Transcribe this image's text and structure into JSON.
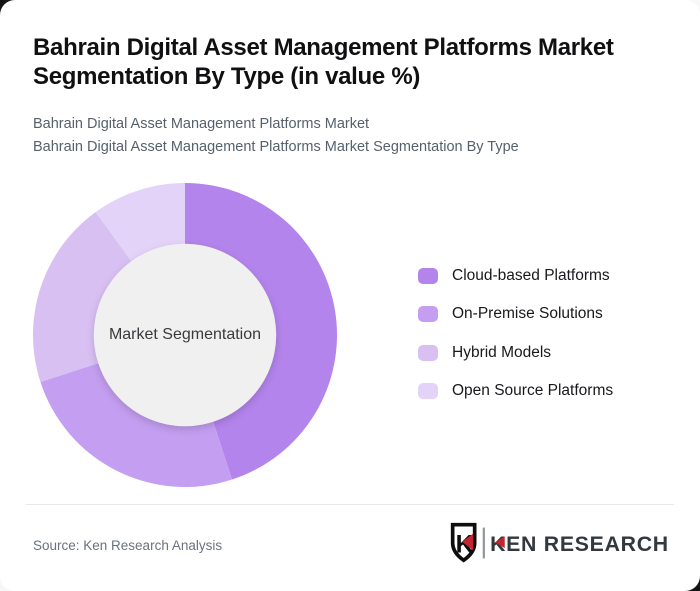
{
  "header": {
    "title_line1": "Bahrain Digital Asset Management Platforms Market",
    "title_line2": "Segmentation By Type (in value %)",
    "subtitle_line1": "Bahrain Digital Asset Management Platforms Market",
    "subtitle_line2": "Bahrain Digital Asset Management Platforms Market Segmentation By Type"
  },
  "chart_data": {
    "type": "pie",
    "variant": "donut",
    "title": "Bahrain Digital Asset Management Platforms Market Segmentation By Type (in value %)",
    "center_label": "Market Segmentation",
    "unit": "value %",
    "start_angle_deg": 0,
    "direction": "clockwise",
    "inner_radius_ratio": 0.6,
    "legend_position": "right",
    "hole_color": "#f0f0f1",
    "series": [
      {
        "name": "Cloud-based Platforms",
        "value": 45,
        "color": "#b384ec"
      },
      {
        "name": "On-Premise Solutions",
        "value": 25,
        "color": "#c49ef0"
      },
      {
        "name": "Hybrid Models",
        "value": 20,
        "color": "#d8c0f3"
      },
      {
        "name": "Open Source Platforms",
        "value": 10,
        "color": "#e4d3f8"
      }
    ]
  },
  "footer": {
    "source": "Source: Ken Research Analysis",
    "logo_monogram": "K",
    "logo_text": "KEN RESEARCH",
    "logo_accent_color": "#c2262e",
    "logo_text_color": "#33383d"
  }
}
